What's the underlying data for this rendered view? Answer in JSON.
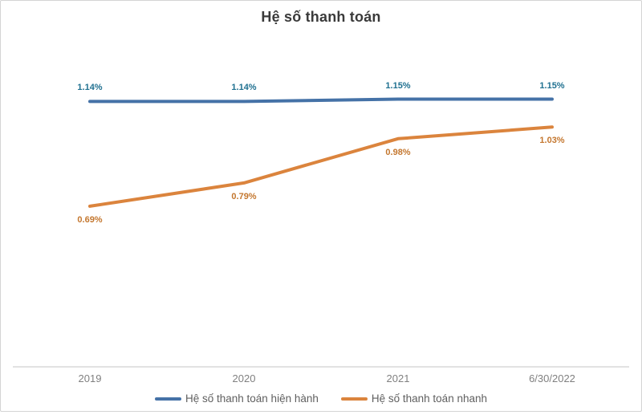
{
  "chart_data": {
    "type": "line",
    "title": "Hệ số thanh toán",
    "categories": [
      "2019",
      "2020",
      "2021",
      "6/30/2022"
    ],
    "series": [
      {
        "name": "Hệ số thanh toán hiện hành",
        "color": "#4572A7",
        "label_color": "#1F7090",
        "label_position": "above",
        "values": [
          1.14,
          1.14,
          1.15,
          1.15
        ],
        "labels": [
          "1.14%",
          "1.14%",
          "1.15%",
          "1.15%"
        ]
      },
      {
        "name": "Hệ số thanh toán nhanh",
        "color": "#DB843D",
        "label_color": "#C4772F",
        "label_position": "below",
        "values": [
          0.69,
          0.79,
          0.98,
          1.03
        ],
        "labels": [
          "0.69%",
          "0.79%",
          "0.98%",
          "1.03%"
        ]
      }
    ],
    "ylim": [
      0,
      1.4
    ],
    "grid": false,
    "y_axis_visible": false,
    "legend_position": "bottom",
    "axis_line_color": "#D9D9D9",
    "category_label_color": "#808080",
    "legend_text_color": "#606060"
  }
}
